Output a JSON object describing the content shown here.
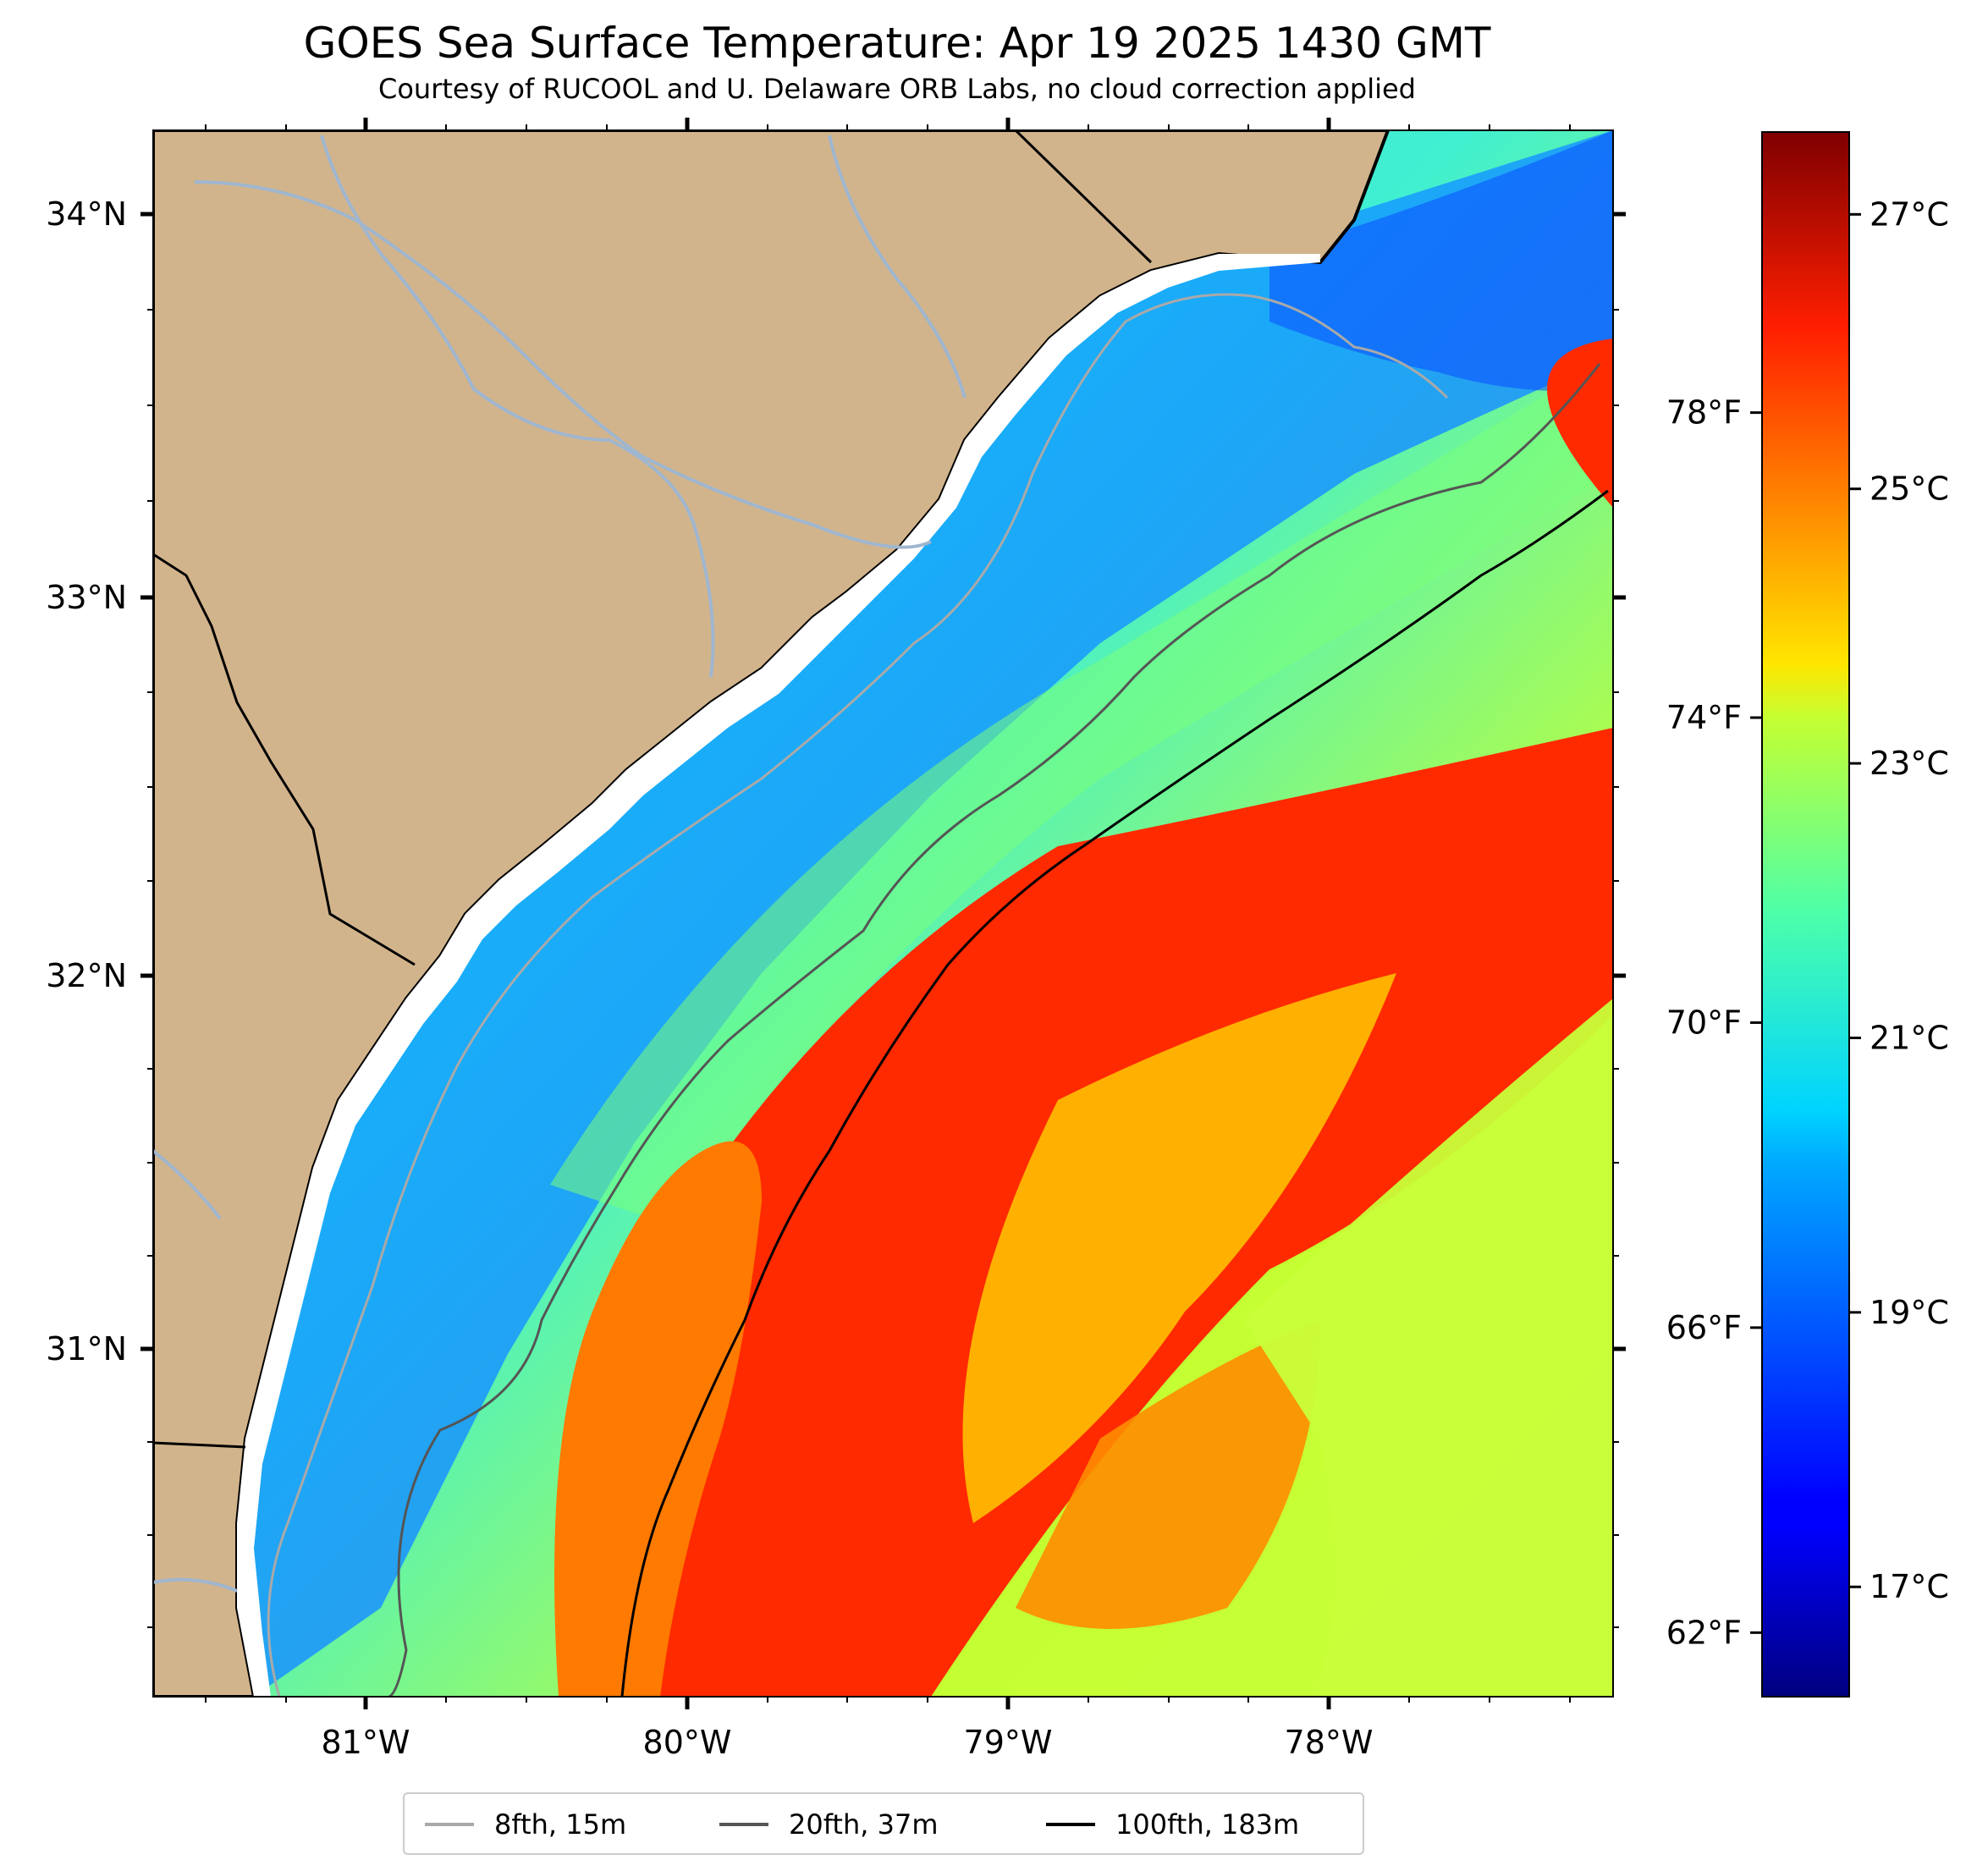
{
  "title": "GOES Sea Surface Temperature: Apr 19 2025 1430 GMT",
  "subtitle": "Courtesy of RUCOOL and U. Delaware ORB Labs, no cloud correction applied",
  "colors": {
    "land": "#d2b48c",
    "river": "#9fb6cf",
    "coast": "#000000",
    "isobath_8fth": "#a9a9a9",
    "isobath_20fth": "#555555",
    "isobath_100fth": "#000000"
  },
  "map": {
    "lon_ticks": [
      "81°W",
      "80°W",
      "79°W",
      "78°W"
    ],
    "lat_ticks": [
      "34°N",
      "33°N",
      "32°N",
      "31°N"
    ]
  },
  "colorbar": {
    "celsius_ticks": [
      "27°C",
      "25°C",
      "23°C",
      "21°C",
      "19°C",
      "17°C"
    ],
    "fahrenheit_ticks": [
      "78°F",
      "74°F",
      "70°F",
      "66°F",
      "62°F"
    ],
    "celsius_values": [
      27,
      25,
      23,
      21,
      19,
      17
    ],
    "fahrenheit_values": [
      78,
      74,
      70,
      66,
      62
    ],
    "range_c": [
      16.2,
      27.6
    ],
    "colormap": "jet"
  },
  "legend": [
    {
      "label": "8fth, 15m",
      "color": "#a9a9a9"
    },
    {
      "label": "20fth, 37m",
      "color": "#555555"
    },
    {
      "label": "100fth, 183m",
      "color": "#000000"
    }
  ]
}
